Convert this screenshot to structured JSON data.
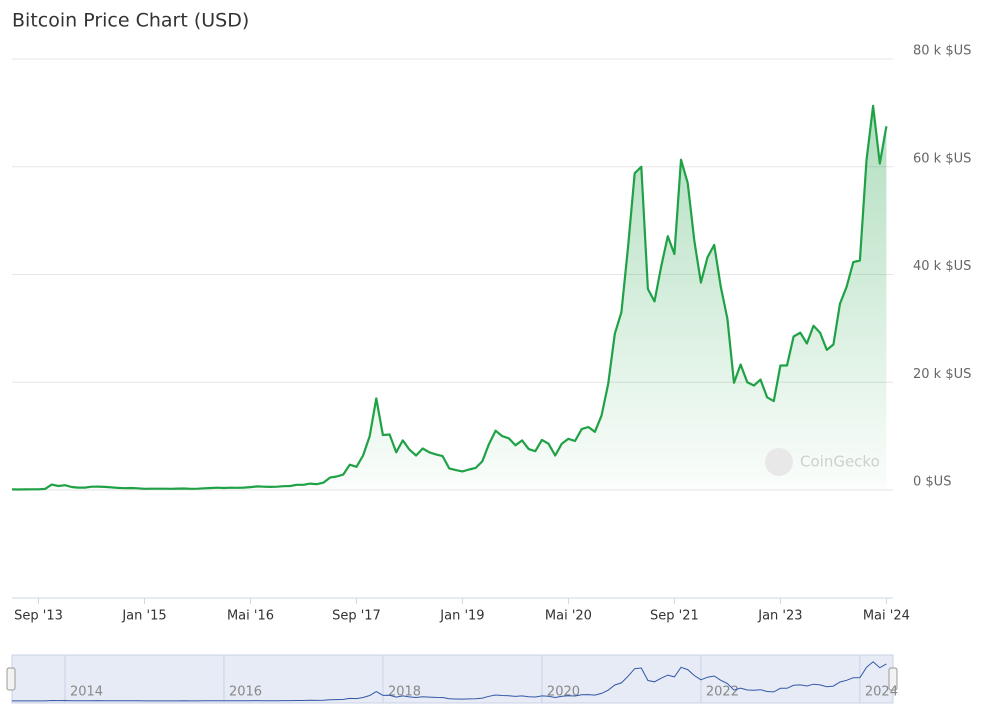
{
  "chart_data": {
    "type": "line",
    "title": "Bitcoin Price Chart (USD)",
    "watermark": "CoinGecko",
    "x": [
      "2013-05",
      "2013-06",
      "2013-07",
      "2013-08",
      "2013-09",
      "2013-10",
      "2013-11",
      "2013-12",
      "2014-01",
      "2014-02",
      "2014-03",
      "2014-04",
      "2014-05",
      "2014-06",
      "2014-07",
      "2014-08",
      "2014-09",
      "2014-10",
      "2014-11",
      "2014-12",
      "2015-01",
      "2015-02",
      "2015-03",
      "2015-04",
      "2015-05",
      "2015-06",
      "2015-07",
      "2015-08",
      "2015-09",
      "2015-10",
      "2015-11",
      "2015-12",
      "2016-01",
      "2016-02",
      "2016-03",
      "2016-04",
      "2016-05",
      "2016-06",
      "2016-07",
      "2016-08",
      "2016-09",
      "2016-10",
      "2016-11",
      "2016-12",
      "2017-01",
      "2017-02",
      "2017-03",
      "2017-04",
      "2017-05",
      "2017-06",
      "2017-07",
      "2017-08",
      "2017-09",
      "2017-10",
      "2017-11",
      "2017-12",
      "2018-01",
      "2018-02",
      "2018-03",
      "2018-04",
      "2018-05",
      "2018-06",
      "2018-07",
      "2018-08",
      "2018-09",
      "2018-10",
      "2018-11",
      "2018-12",
      "2019-01",
      "2019-02",
      "2019-03",
      "2019-04",
      "2019-05",
      "2019-06",
      "2019-07",
      "2019-08",
      "2019-09",
      "2019-10",
      "2019-11",
      "2019-12",
      "2020-01",
      "2020-02",
      "2020-03",
      "2020-04",
      "2020-05",
      "2020-06",
      "2020-07",
      "2020-08",
      "2020-09",
      "2020-10",
      "2020-11",
      "2020-12",
      "2021-01",
      "2021-02",
      "2021-03",
      "2021-04",
      "2021-05",
      "2021-06",
      "2021-07",
      "2021-08",
      "2021-09",
      "2021-10",
      "2021-11",
      "2021-12",
      "2022-01",
      "2022-02",
      "2022-03",
      "2022-04",
      "2022-05",
      "2022-06",
      "2022-07",
      "2022-08",
      "2022-09",
      "2022-10",
      "2022-11",
      "2022-12",
      "2023-01",
      "2023-02",
      "2023-03",
      "2023-04",
      "2023-05",
      "2023-06",
      "2023-07",
      "2023-08",
      "2023-09",
      "2023-10",
      "2023-11",
      "2023-12",
      "2024-01",
      "2024-02",
      "2024-03",
      "2024-04",
      "2024-05"
    ],
    "series": [
      {
        "name": "Bitcoin",
        "color": "#1fa146",
        "values": [
          120,
          100,
          105,
          135,
          130,
          200,
          1000,
          750,
          900,
          550,
          450,
          450,
          620,
          640,
          580,
          480,
          390,
          340,
          380,
          320,
          220,
          250,
          245,
          235,
          230,
          260,
          285,
          230,
          235,
          310,
          380,
          430,
          370,
          435,
          415,
          450,
          530,
          670,
          620,
          575,
          610,
          700,
          740,
          960,
          970,
          1190,
          1080,
          1350,
          2300,
          2500,
          2850,
          4700,
          4300,
          6400,
          10000,
          17000,
          10200,
          10300,
          7000,
          9200,
          7500,
          6400,
          7700,
          7000,
          6600,
          6300,
          4000,
          3700,
          3450,
          3800,
          4100,
          5300,
          8500,
          11000,
          10000,
          9600,
          8300,
          9200,
          7600,
          7200,
          9300,
          8600,
          6400,
          8600,
          9500,
          9100,
          11300,
          11700,
          10800,
          13800,
          19700,
          29000,
          33000,
          45000,
          58800,
          60000,
          37300,
          35000,
          41500,
          47100,
          43800,
          61300,
          57000,
          46300,
          38500,
          43200,
          45500,
          37700,
          31800,
          19900,
          23300,
          20000,
          19400,
          20500,
          17200,
          16500,
          23100,
          23100,
          28500,
          29200,
          27200,
          30500,
          29200,
          26000,
          27000,
          34600,
          37700,
          42300,
          42600,
          61200,
          71300,
          60600,
          67500
        ]
      }
    ],
    "xlim": [
      "2013-05",
      "2024-06"
    ],
    "xticks": [
      {
        "value": "2013-09",
        "label": "Sep '13"
      },
      {
        "value": "2015-01",
        "label": "Jan '15"
      },
      {
        "value": "2016-05",
        "label": "Mai '16"
      },
      {
        "value": "2017-09",
        "label": "Sep '17"
      },
      {
        "value": "2019-01",
        "label": "Jan '19"
      },
      {
        "value": "2020-05",
        "label": "Mai '20"
      },
      {
        "value": "2021-09",
        "label": "Sep '21"
      },
      {
        "value": "2023-01",
        "label": "Jan '23"
      },
      {
        "value": "2024-05",
        "label": "Mai '24"
      }
    ],
    "ylim": [
      0,
      80000
    ],
    "yticks": [
      {
        "value": 0,
        "label": "0 $US"
      },
      {
        "value": 20000,
        "label": "20 k $US"
      },
      {
        "value": 40000,
        "label": "40 k $US"
      },
      {
        "value": 60000,
        "label": "60 k $US"
      },
      {
        "value": 80000,
        "label": "80 k $US"
      }
    ],
    "grid": true,
    "navigator_ticks": [
      {
        "value": "2014-01",
        "label": "2014"
      },
      {
        "value": "2016-01",
        "label": "2016"
      },
      {
        "value": "2018-01",
        "label": "2018"
      },
      {
        "value": "2020-01",
        "label": "2020"
      },
      {
        "value": "2022-01",
        "label": "2022"
      },
      {
        "value": "2024-01",
        "label": "2024"
      }
    ]
  }
}
